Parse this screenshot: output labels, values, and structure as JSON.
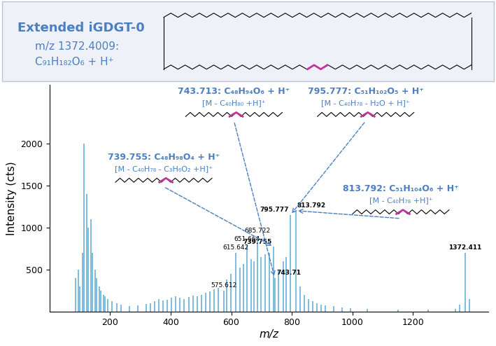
{
  "chart_data": {
    "type": "spectrum",
    "title": "Extended iGDGT-0",
    "subtitle": [
      "m/z 1372.4009:",
      "C₉₁H₁₈₂O₆ + H⁺"
    ],
    "x_label": "m/z",
    "y_label": "Intensity (cts)",
    "color": "#5aa9d6",
    "x": [
      85,
      95,
      99,
      109,
      113,
      123,
      127,
      137,
      141,
      151,
      155,
      165,
      169,
      179,
      183,
      193,
      207,
      221,
      235,
      263,
      291,
      319,
      333,
      347,
      361,
      375,
      389,
      403,
      417,
      431,
      445,
      459,
      473,
      487,
      501,
      515,
      529,
      543,
      557,
      575.612,
      585,
      599,
      615.642,
      629,
      641,
      651.664,
      665,
      675,
      685.722,
      699,
      713,
      725,
      739.755,
      743.71,
      757,
      771,
      781,
      795.777,
      813.792,
      827,
      841,
      855,
      869,
      883,
      897,
      911,
      939,
      967,
      995,
      1050,
      1150,
      1250,
      1340,
      1354,
      1372.411,
      1386
    ],
    "values": [
      400,
      500,
      300,
      700,
      2000,
      1400,
      1000,
      1100,
      700,
      500,
      400,
      300,
      250,
      200,
      180,
      150,
      120,
      100,
      80,
      60,
      70,
      90,
      100,
      120,
      150,
      130,
      140,
      160,
      180,
      160,
      150,
      170,
      190,
      180,
      200,
      220,
      240,
      260,
      280,
      250,
      380,
      450,
      700,
      520,
      560,
      800,
      620,
      600,
      900,
      650,
      680,
      700,
      770,
      400,
      500,
      600,
      650,
      1150,
      1200,
      300,
      200,
      150,
      120,
      100,
      80,
      70,
      60,
      50,
      40,
      30,
      25,
      20,
      30,
      80,
      700,
      150
    ],
    "xlim": [
      0,
      1450
    ],
    "xticks": [
      200,
      400,
      600,
      800,
      1000,
      1200
    ],
    "ylim": [
      0,
      2700
    ],
    "yticks": [
      500,
      1000,
      1500,
      2000
    ],
    "peak_labels": [
      {
        "value": 575.612,
        "label": "575.612"
      },
      {
        "value": 615.642,
        "label": "615.642"
      },
      {
        "value": 651.664,
        "label": "651.664"
      },
      {
        "value": 685.722,
        "label": "685.722"
      },
      {
        "value": 739.755,
        "label": "739.755"
      },
      {
        "value": 743.71,
        "label": "743.71"
      },
      {
        "value": 795.777,
        "label": "795.777"
      },
      {
        "value": 813.792,
        "label": "813.792"
      },
      {
        "value": 1372.411,
        "label": "1372.411"
      }
    ],
    "annotations": [
      {
        "target": 743.71,
        "lines": [
          "743.713: C₄₈H₉₄O₆ + H⁺",
          "[M - C₄₀H₈₀ +H]⁺"
        ]
      },
      {
        "target": 795.777,
        "lines": [
          "795.777: C₅₁H₁₀₂O₅ + H⁺",
          "[M - C₄₀H₇₈ - H₂O + H]⁺"
        ]
      },
      {
        "target": 739.755,
        "lines": [
          "739.755: C₄₈H₉₈O₄ + H⁺",
          "[M - C₄₀H₇₈ - C₃H₆O₂ +H]⁺"
        ]
      },
      {
        "target": 813.792,
        "lines": [
          "813.792: C₅₁H₁₀₄O₆ + H⁺",
          "[M - C₄₀H₇₈ +H]⁺"
        ]
      }
    ]
  }
}
